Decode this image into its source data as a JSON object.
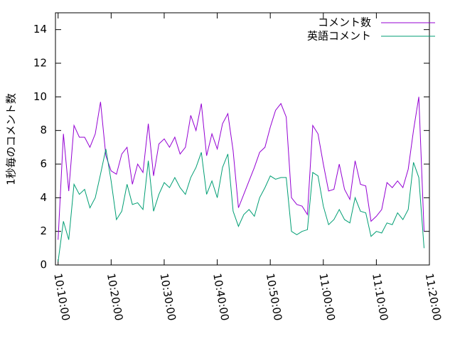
{
  "chart_data": {
    "type": "line",
    "y_label": "1秒毎のコメント数",
    "x": [
      "10:10:00",
      "10:11:00",
      "10:12:00",
      "10:13:00",
      "10:14:00",
      "10:15:00",
      "10:16:00",
      "10:17:00",
      "10:18:00",
      "10:19:00",
      "10:20:00",
      "10:21:00",
      "10:22:00",
      "10:23:00",
      "10:24:00",
      "10:25:00",
      "10:26:00",
      "10:27:00",
      "10:28:00",
      "10:29:00",
      "10:30:00",
      "10:31:00",
      "10:32:00",
      "10:33:00",
      "10:34:00",
      "10:35:00",
      "10:36:00",
      "10:37:00",
      "10:38:00",
      "10:39:00",
      "10:40:00",
      "10:41:00",
      "10:42:00",
      "10:43:00",
      "10:44:00",
      "10:45:00",
      "10:46:00",
      "10:47:00",
      "10:48:00",
      "10:49:00",
      "10:50:00",
      "10:51:00",
      "10:52:00",
      "10:53:00",
      "10:54:00",
      "10:55:00",
      "10:56:00",
      "10:57:00",
      "10:58:00",
      "10:59:00",
      "11:00:00",
      "11:01:00",
      "11:02:00",
      "11:03:00",
      "11:04:00",
      "11:05:00",
      "11:06:00",
      "11:07:00",
      "11:08:00",
      "11:09:00",
      "11:10:00",
      "11:11:00",
      "11:12:00",
      "11:13:00",
      "11:14:00",
      "11:15:00",
      "11:16:00",
      "11:17:00",
      "11:18:00",
      "11:19:00"
    ],
    "series": [
      {
        "name": "コメント数",
        "color": "#9400d3",
        "values": [
          1.5,
          7.8,
          4.4,
          8.3,
          7.6,
          7.6,
          7.0,
          7.8,
          9.7,
          6.5,
          5.6,
          5.4,
          6.6,
          7.0,
          4.8,
          6.0,
          5.5,
          8.4,
          5.3,
          7.2,
          7.5,
          7.0,
          7.6,
          6.6,
          7.0,
          8.9,
          8.0,
          9.6,
          6.5,
          7.8,
          6.9,
          8.4,
          9.0,
          6.8,
          3.4,
          4.2,
          5.0,
          5.8,
          6.7,
          7.0,
          8.2,
          9.2,
          9.6,
          8.8,
          4.0,
          3.6,
          3.5,
          3.0,
          8.3,
          7.8,
          6.0,
          4.4,
          4.5,
          6.0,
          4.5,
          3.9,
          6.2,
          4.8,
          4.7,
          2.6,
          2.9,
          3.3,
          4.9,
          4.6,
          5.0,
          4.6,
          5.7,
          8.0,
          10.0,
          2.0
        ]
      },
      {
        "name": "英語コメント",
        "color": "#009e73",
        "values": [
          0.2,
          2.6,
          1.5,
          4.8,
          4.2,
          4.5,
          3.4,
          4.0,
          5.4,
          6.9,
          5.0,
          2.7,
          3.2,
          4.8,
          3.6,
          3.7,
          3.3,
          6.2,
          3.2,
          4.2,
          4.9,
          4.6,
          5.2,
          4.6,
          4.2,
          5.2,
          5.8,
          6.7,
          4.2,
          5.0,
          4.0,
          5.8,
          6.6,
          3.2,
          2.3,
          3.0,
          3.3,
          2.9,
          4.0,
          4.6,
          5.3,
          5.1,
          5.2,
          5.2,
          2.0,
          1.8,
          2.0,
          2.1,
          5.5,
          5.3,
          3.5,
          2.4,
          2.7,
          3.3,
          2.7,
          2.5,
          4.0,
          3.2,
          3.1,
          1.7,
          2.0,
          1.9,
          2.5,
          2.4,
          3.1,
          2.7,
          3.3,
          6.1,
          5.2,
          1.0
        ]
      }
    ],
    "xlim": [
      "10:09:30",
      "11:20:00"
    ],
    "xticks": [
      "10:10:00",
      "10:20:00",
      "10:30:00",
      "10:40:00",
      "10:50:00",
      "11:00:00",
      "11:10:00",
      "11:20:00"
    ],
    "ylim": [
      0,
      15
    ],
    "yticks": [
      0,
      2,
      4,
      6,
      8,
      10,
      12,
      14
    ],
    "legend": "top-right"
  }
}
